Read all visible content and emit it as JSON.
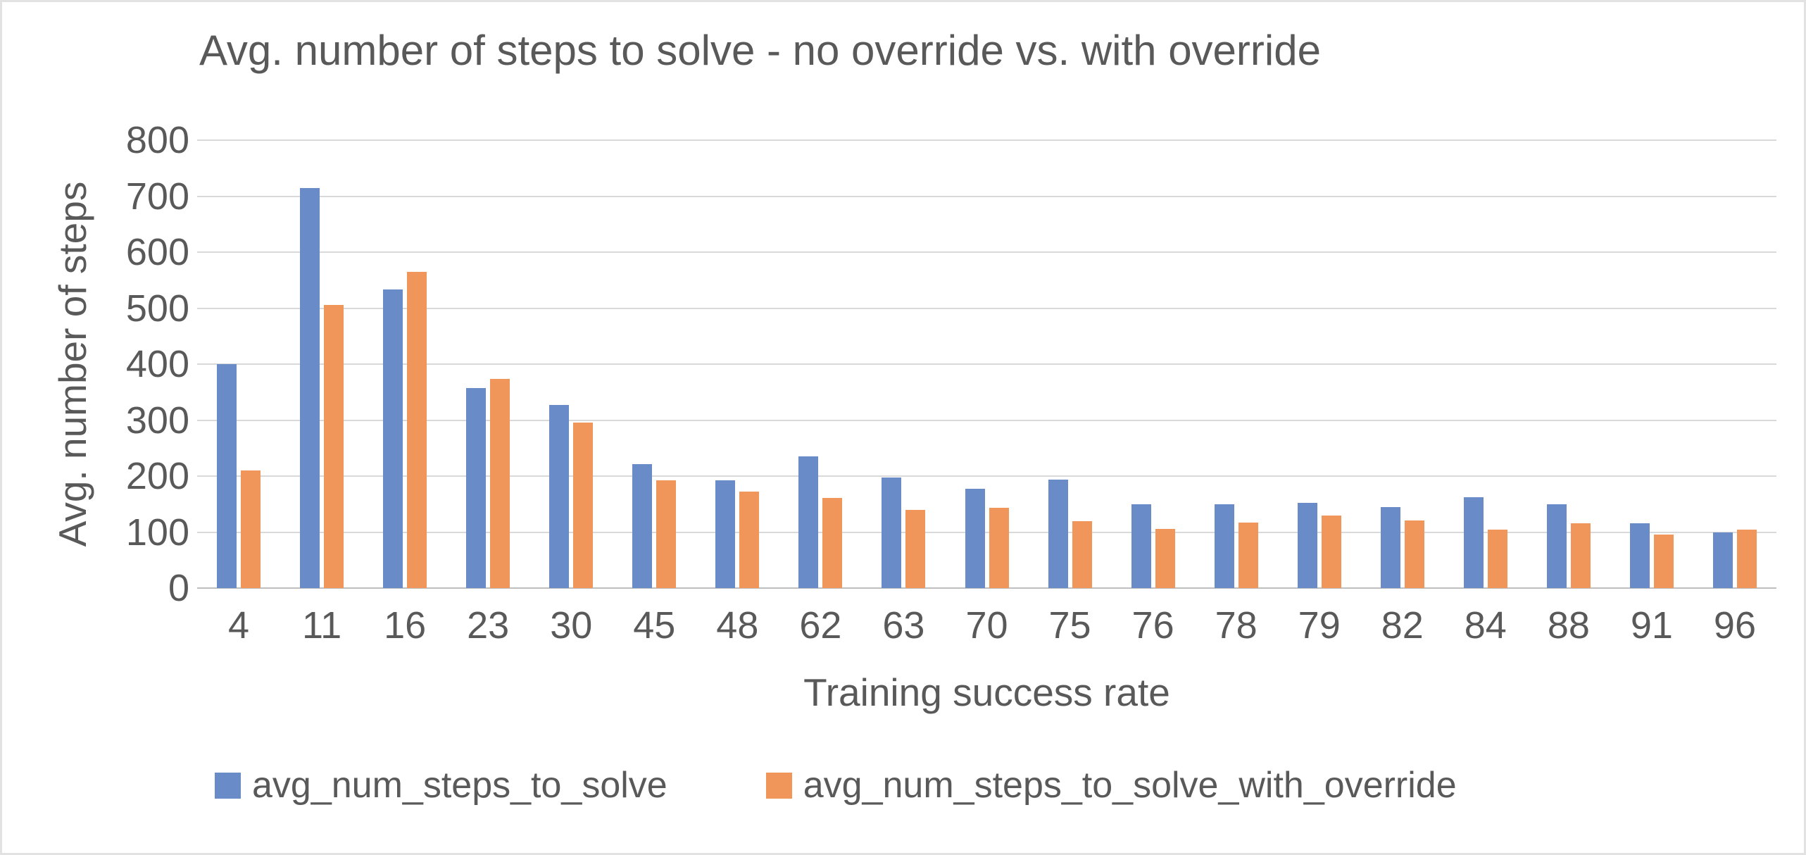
{
  "chart_data": {
    "type": "bar",
    "title": "Avg. number of steps to solve - no override vs. with override",
    "xlabel": "Training success rate",
    "ylabel": "Avg. number of steps",
    "ylim": [
      0,
      800
    ],
    "ytick_step": 100,
    "yticks": [
      "0",
      "100",
      "200",
      "300",
      "400",
      "500",
      "600",
      "700",
      "800"
    ],
    "grid": true,
    "legend_position": "bottom",
    "categories": [
      "4",
      "11",
      "16",
      "23",
      "30",
      "45",
      "48",
      "62",
      "63",
      "70",
      "75",
      "76",
      "78",
      "79",
      "82",
      "84",
      "88",
      "91",
      "96"
    ],
    "series": [
      {
        "name": "avg_num_steps_to_solve",
        "color": "#698cc8",
        "values": [
          400,
          715,
          533,
          357,
          327,
          222,
          193,
          235,
          198,
          178,
          194,
          150,
          150,
          152,
          145,
          162,
          150,
          116,
          99
        ]
      },
      {
        "name": "avg_num_steps_to_solve_with_override",
        "color": "#f0965a",
        "values": [
          210,
          506,
          565,
          373,
          295,
          193,
          172,
          161,
          140,
          143,
          119,
          106,
          117,
          129,
          121,
          104,
          116,
          95,
          105
        ]
      }
    ],
    "colors": {
      "text": "#595959",
      "gridline": "#d9d9d9",
      "axis_line": "#bfbfbf",
      "background": "#ffffff"
    }
  }
}
